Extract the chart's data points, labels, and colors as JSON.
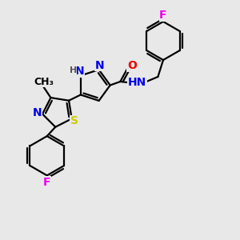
{
  "bg_color": "#e8e8e8",
  "atom_colors": {
    "C": "#000000",
    "N": "#0000ee",
    "O": "#ee0000",
    "S": "#cccc00",
    "F": "#ee00ee",
    "H": "#555555"
  },
  "bond_color": "#000000",
  "bond_width": 1.6,
  "font_size_atom": 10,
  "font_size_small": 8
}
